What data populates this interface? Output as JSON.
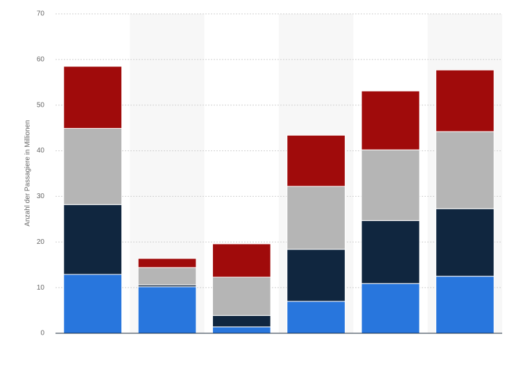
{
  "chart_data": {
    "type": "stacked_bar",
    "y_label": "Anzahl der Passagiere in Millionen",
    "categories": [
      null,
      null,
      null,
      null,
      null,
      null
    ],
    "series": [
      {
        "color": "#2876dd",
        "values": [
          12.9,
          10.2,
          1.4,
          7.0,
          10.9,
          12.5
        ]
      },
      {
        "color": "#10263f",
        "values": [
          15.3,
          0.4,
          2.5,
          11.4,
          13.8,
          14.8
        ]
      },
      {
        "color": "#b5b5b5",
        "values": [
          16.7,
          3.8,
          8.4,
          13.8,
          15.5,
          16.9
        ]
      },
      {
        "color": "#a00b0b",
        "values": [
          13.6,
          2.0,
          7.3,
          11.2,
          12.9,
          13.5
        ]
      }
    ],
    "ylim": [
      0,
      70
    ],
    "yticks": [
      0,
      10,
      20,
      30,
      40,
      50,
      60,
      70
    ],
    "grid": true
  }
}
